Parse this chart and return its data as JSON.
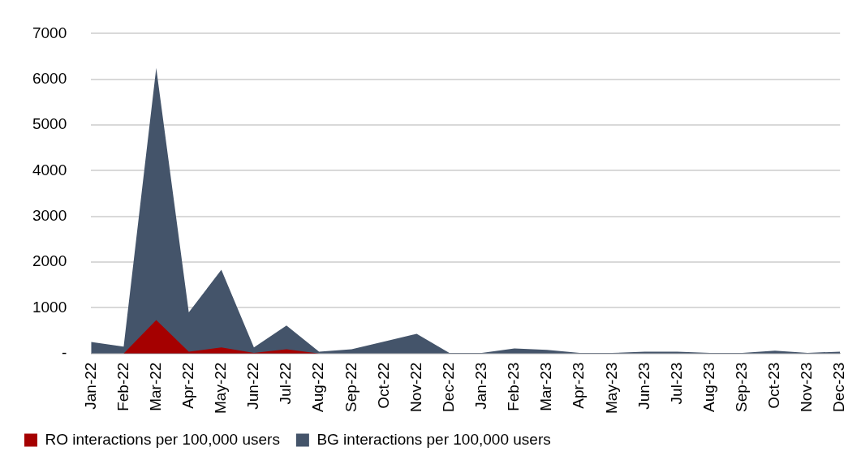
{
  "chart_data": {
    "type": "area",
    "categories": [
      "Jan-22",
      "Feb-22",
      "Mar-22",
      "Apr-22",
      "May-22",
      "Jun-22",
      "Jul-22",
      "Aug-22",
      "Sep-22",
      "Oct-22",
      "Nov-22",
      "Dec-22",
      "Jan-23",
      "Feb-23",
      "Mar-23",
      "Apr-23",
      "May-23",
      "Jun-23",
      "Jul-23",
      "Aug-23",
      "Sep-23",
      "Oct-23",
      "Nov-23",
      "Dec-23"
    ],
    "series": [
      {
        "name": "RO interactions per 100,000 users",
        "color": "#a50000",
        "values": [
          0,
          0,
          730,
          40,
          130,
          10,
          90,
          0,
          0,
          0,
          0,
          0,
          0,
          0,
          0,
          0,
          0,
          0,
          0,
          0,
          0,
          0,
          0,
          0
        ]
      },
      {
        "name": "BG interactions per 100,000 users",
        "color": "#44546a",
        "values": [
          250,
          150,
          6250,
          900,
          1830,
          130,
          610,
          40,
          90,
          260,
          430,
          10,
          10,
          110,
          80,
          10,
          10,
          40,
          40,
          10,
          10,
          60,
          10,
          40
        ]
      }
    ],
    "ylim": [
      0,
      7000
    ],
    "yticks": [
      {
        "value": 0,
        "label": "-"
      },
      1000,
      2000,
      3000,
      4000,
      5000,
      6000,
      7000
    ],
    "grid": "y",
    "legend": "bottom"
  }
}
